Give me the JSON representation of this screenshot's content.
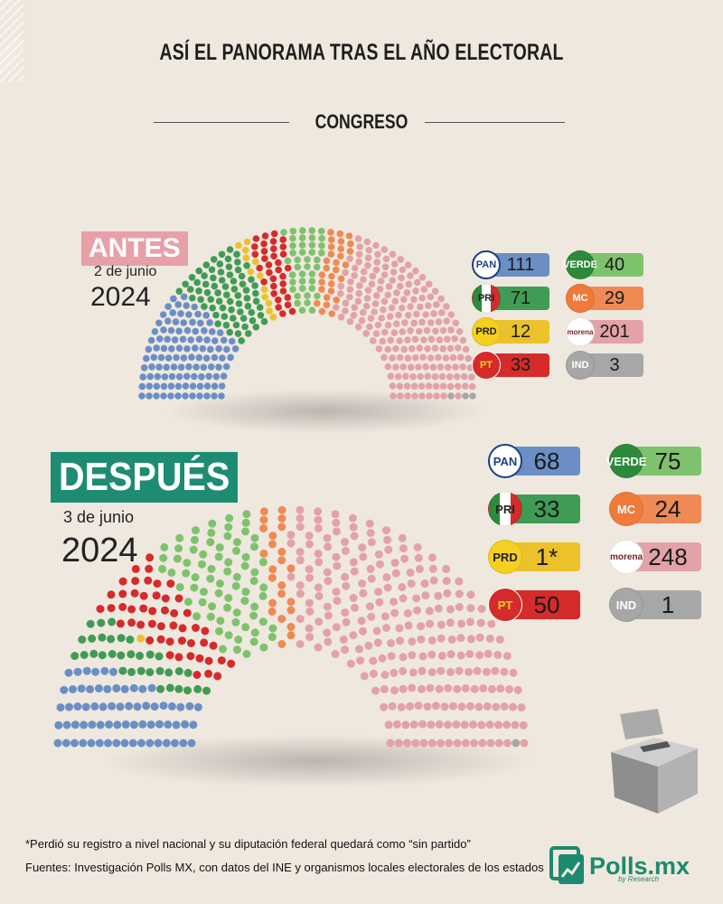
{
  "title": "ASÍ EL PANORAMA TRAS EL AÑO ELECTORAL",
  "section": "CONGRESO",
  "antes": {
    "label": "ANTES",
    "date": "2 de junio",
    "year": "2024"
  },
  "despues": {
    "label": "DESPUÉS",
    "date": "3 de junio",
    "year": "2024"
  },
  "colors": {
    "PAN": "#6b8fc4",
    "PRI": "#3f9c54",
    "PRD": "#ecc22c",
    "PT": "#d52b2b",
    "VERDE": "#7fc26e",
    "MC": "#ef8a55",
    "MORENA": "#e3a2a6",
    "IND": "#a7a7a7"
  },
  "chart_data": [
    {
      "type": "parliament",
      "label": "ANTES",
      "seats": [
        {
          "party": "PAN",
          "logo_text": "PAN",
          "value": 111,
          "value_label": "111"
        },
        {
          "party": "PRI",
          "logo_text": "PRI",
          "value": 71,
          "value_label": "71"
        },
        {
          "party": "PRD",
          "logo_text": "PRD",
          "value": 12,
          "value_label": "12"
        },
        {
          "party": "PT",
          "logo_text": "PT",
          "value": 33,
          "value_label": "33"
        },
        {
          "party": "VERDE",
          "logo_text": "VERDE",
          "value": 40,
          "value_label": "40"
        },
        {
          "party": "MC",
          "logo_text": "MC",
          "value": 29,
          "value_label": "29"
        },
        {
          "party": "MORENA",
          "logo_text": "morena",
          "value": 201,
          "value_label": "201"
        },
        {
          "party": "IND",
          "logo_text": "IND",
          "value": 3,
          "value_label": "3"
        }
      ]
    },
    {
      "type": "parliament",
      "label": "DESPUÉS",
      "seats": [
        {
          "party": "PAN",
          "logo_text": "PAN",
          "value": 68,
          "value_label": "68"
        },
        {
          "party": "PRI",
          "logo_text": "PRI",
          "value": 33,
          "value_label": "33"
        },
        {
          "party": "PRD",
          "logo_text": "PRD",
          "value": 1,
          "value_label": "1*"
        },
        {
          "party": "PT",
          "logo_text": "PT",
          "value": 50,
          "value_label": "50"
        },
        {
          "party": "VERDE",
          "logo_text": "VERDE",
          "value": 75,
          "value_label": "75"
        },
        {
          "party": "MC",
          "logo_text": "MC",
          "value": 24,
          "value_label": "24"
        },
        {
          "party": "MORENA",
          "logo_text": "morena",
          "value": 248,
          "value_label": "248"
        },
        {
          "party": "IND",
          "logo_text": "IND",
          "value": 1,
          "value_label": "1"
        }
      ]
    }
  ],
  "footnote": "*Perdió su registro a nivel nacional y su diputación federal quedará como “sin partido”",
  "sources": "Fuentes: Investigación Polls MX, con datos del INE y organismos locales electorales de los estados",
  "brand": {
    "name": "Polls.mx",
    "sub": "by Research"
  }
}
